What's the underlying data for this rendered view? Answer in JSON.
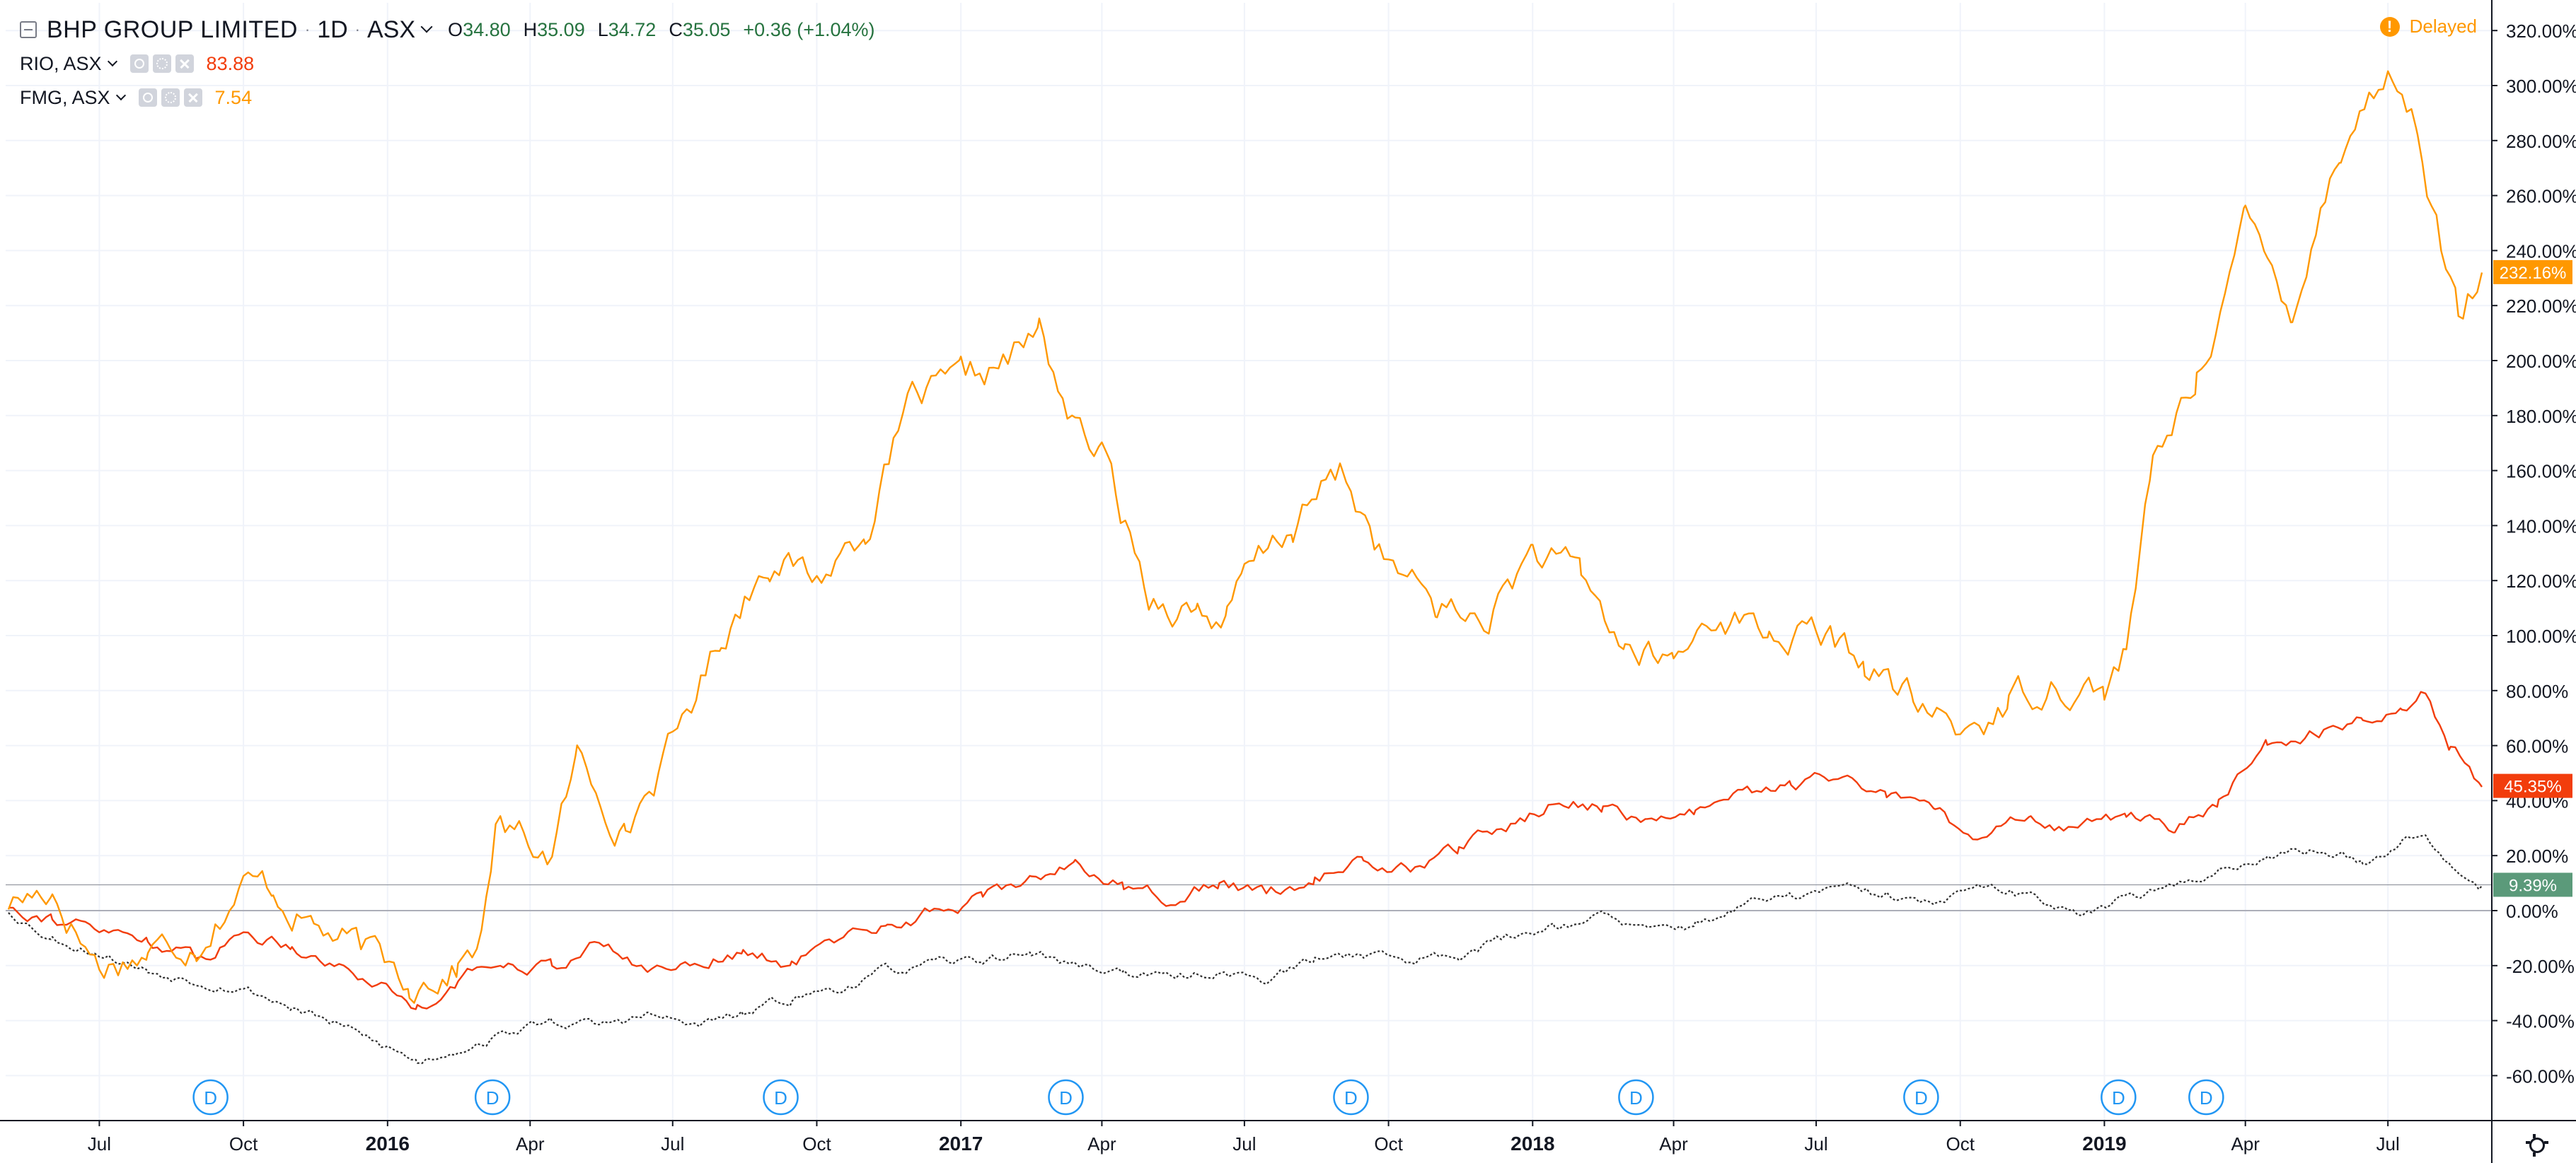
{
  "legend": {
    "main": {
      "title": "BHP GROUP LIMITED",
      "interval": "1D",
      "exchange": "ASX",
      "open_label": "O",
      "open": "34.80",
      "high_label": "H",
      "high": "35.09",
      "low_label": "L",
      "low": "34.72",
      "close_label": "C",
      "close": "35.05",
      "change": "+0.36 (+1.04%)"
    },
    "compare": [
      {
        "symbol": "RIO, ASX",
        "value": "83.88",
        "color": "#f23d0c"
      },
      {
        "symbol": "FMG, ASX",
        "value": "7.54",
        "color": "#ff9800"
      }
    ]
  },
  "status": {
    "delayed_label": "Delayed"
  },
  "icons": {
    "collapse": "collapse-icon",
    "visibility": "eye-icon",
    "settings": "gear-icon",
    "remove": "close-icon",
    "warning": "warning-icon",
    "chart_settings": "settings-icon",
    "dividend": "dividend-marker-icon"
  },
  "chart_data": {
    "type": "line",
    "title": "",
    "xlabel": "",
    "ylabel": "",
    "y_unit": "%",
    "ylim": [
      -70,
      330
    ],
    "x_range": [
      "2015-05-04",
      "2019-08-30"
    ],
    "grid": true,
    "y_ticks": [
      "320.00%",
      "300.00%",
      "280.00%",
      "260.00%",
      "240.00%",
      "220.00%",
      "200.00%",
      "180.00%",
      "160.00%",
      "140.00%",
      "120.00%",
      "100.00%",
      "80.00%",
      "60.00%",
      "40.00%",
      "20.00%",
      "0.00%",
      "-20.00%",
      "-40.00%",
      "-60.00%"
    ],
    "y_tick_values": [
      320,
      300,
      280,
      260,
      240,
      220,
      200,
      180,
      160,
      140,
      120,
      100,
      80,
      60,
      40,
      20,
      0,
      -20,
      -40,
      -60
    ],
    "x_ticks": [
      "Jul",
      "Oct",
      "2016",
      "Apr",
      "Jul",
      "Oct",
      "2017",
      "Apr",
      "Jul",
      "Oct",
      "2018",
      "Apr",
      "Jul",
      "Oct",
      "2019",
      "Apr",
      "Jul"
    ],
    "x_tick_dates": [
      "2015-07-01",
      "2015-10-01",
      "2016-01-01",
      "2016-04-01",
      "2016-07-01",
      "2016-10-01",
      "2017-01-01",
      "2017-04-01",
      "2017-07-01",
      "2017-10-01",
      "2018-01-01",
      "2018-04-01",
      "2018-07-01",
      "2018-10-01",
      "2019-01-01",
      "2019-04-01",
      "2019-07-01"
    ],
    "dividend_markers": {
      "label": "D",
      "dates": [
        "2015-09-10",
        "2016-03-08",
        "2016-09-08",
        "2017-03-09",
        "2017-09-07",
        "2018-03-08",
        "2018-09-06",
        "2019-01-10",
        "2019-03-07"
      ]
    },
    "series": [
      {
        "name": "FMG, ASX",
        "color": "#ff9800",
        "last_label": "232.16%",
        "x": [
          "2015-05-04",
          "2015-06-01",
          "2015-07-01",
          "2015-08-01",
          "2015-09-01",
          "2015-10-01",
          "2015-10-20",
          "2015-11-15",
          "2015-12-15",
          "2016-01-15",
          "2016-02-15",
          "2016-03-01",
          "2016-03-10",
          "2016-04-15",
          "2016-05-01",
          "2016-06-01",
          "2016-07-01",
          "2016-08-01",
          "2016-09-01",
          "2016-10-01",
          "2016-11-01",
          "2016-12-01",
          "2017-01-01",
          "2017-02-01",
          "2017-02-20",
          "2017-03-15",
          "2017-04-01",
          "2017-05-01",
          "2017-06-01",
          "2017-06-20",
          "2017-07-01",
          "2017-08-01",
          "2017-09-01",
          "2017-10-01",
          "2017-11-01",
          "2017-12-01",
          "2018-01-01",
          "2018-02-01",
          "2018-03-01",
          "2018-04-01",
          "2018-05-01",
          "2018-06-01",
          "2018-07-01",
          "2018-08-01",
          "2018-09-01",
          "2018-10-01",
          "2018-11-01",
          "2018-12-01",
          "2019-01-01",
          "2019-01-15",
          "2019-02-01",
          "2019-03-01",
          "2019-04-01",
          "2019-04-15",
          "2019-05-01",
          "2019-06-01",
          "2019-07-01",
          "2019-07-20",
          "2019-08-01",
          "2019-08-15",
          "2019-08-30"
        ],
        "values": [
          3,
          8,
          -20,
          -15,
          -10,
          10,
          8,
          -5,
          -15,
          -25,
          -20,
          -10,
          30,
          20,
          55,
          30,
          60,
          100,
          130,
          120,
          140,
          185,
          190,
          200,
          210,
          175,
          165,
          115,
          110,
          105,
          120,
          140,
          160,
          125,
          110,
          105,
          130,
          120,
          95,
          90,
          110,
          100,
          100,
          90,
          75,
          65,
          75,
          85,
          80,
          95,
          160,
          195,
          250,
          235,
          220,
          280,
          305,
          285,
          250,
          215,
          232
        ]
      },
      {
        "name": "RIO, ASX",
        "color": "#f23d0c",
        "last_label": "45.35%",
        "x": [
          "2015-05-04",
          "2015-06-01",
          "2015-07-01",
          "2015-08-01",
          "2015-09-01",
          "2015-10-01",
          "2015-11-01",
          "2015-12-01",
          "2016-01-01",
          "2016-01-20",
          "2016-02-15",
          "2016-03-15",
          "2016-04-15",
          "2016-05-15",
          "2016-06-15",
          "2016-07-15",
          "2016-08-15",
          "2016-09-15",
          "2016-10-15",
          "2016-11-15",
          "2016-12-15",
          "2017-01-15",
          "2017-02-15",
          "2017-03-15",
          "2017-04-15",
          "2017-05-15",
          "2017-06-15",
          "2017-07-15",
          "2017-08-15",
          "2017-09-15",
          "2017-10-15",
          "2017-11-15",
          "2017-12-15",
          "2018-01-15",
          "2018-02-15",
          "2018-03-15",
          "2018-04-15",
          "2018-05-15",
          "2018-06-15",
          "2018-07-15",
          "2018-08-15",
          "2018-09-15",
          "2018-10-15",
          "2018-11-15",
          "2018-12-15",
          "2019-01-15",
          "2019-02-15",
          "2019-03-15",
          "2019-04-15",
          "2019-05-15",
          "2019-06-15",
          "2019-07-10",
          "2019-07-25",
          "2019-08-10",
          "2019-08-30"
        ],
        "values": [
          2,
          -2,
          -8,
          -10,
          -18,
          -8,
          -12,
          -20,
          -28,
          -35,
          -25,
          -18,
          -20,
          -12,
          -22,
          -18,
          -15,
          -20,
          -10,
          -5,
          0,
          5,
          12,
          18,
          8,
          5,
          10,
          6,
          12,
          18,
          15,
          22,
          30,
          40,
          38,
          32,
          35,
          42,
          45,
          48,
          42,
          35,
          25,
          35,
          30,
          35,
          30,
          40,
          60,
          65,
          70,
          75,
          80,
          60,
          45
        ]
      },
      {
        "name": "BHP GROUP LIMITED",
        "color": "#2e2e2e",
        "last_label": "9.39%",
        "x": [
          "2015-05-04",
          "2015-06-01",
          "2015-07-01",
          "2015-08-01",
          "2015-09-01",
          "2015-10-01",
          "2015-11-01",
          "2015-12-01",
          "2016-01-01",
          "2016-01-20",
          "2016-02-15",
          "2016-03-15",
          "2016-04-15",
          "2016-05-15",
          "2016-06-15",
          "2016-07-15",
          "2016-08-15",
          "2016-09-15",
          "2016-10-15",
          "2016-11-15",
          "2016-12-15",
          "2017-01-15",
          "2017-02-15",
          "2017-03-15",
          "2017-04-15",
          "2017-05-15",
          "2017-06-15",
          "2017-07-15",
          "2017-08-15",
          "2017-09-15",
          "2017-10-15",
          "2017-11-15",
          "2017-12-15",
          "2018-01-15",
          "2018-02-15",
          "2018-03-15",
          "2018-04-15",
          "2018-05-15",
          "2018-06-15",
          "2018-07-15",
          "2018-08-15",
          "2018-09-15",
          "2018-10-15",
          "2018-11-15",
          "2018-12-15",
          "2019-01-15",
          "2019-02-15",
          "2019-03-15",
          "2019-04-15",
          "2019-05-15",
          "2019-06-15",
          "2019-07-10",
          "2019-07-25",
          "2019-08-10",
          "2019-08-30"
        ],
        "values": [
          0,
          -10,
          -15,
          -22,
          -25,
          -28,
          -35,
          -42,
          -50,
          -55,
          -50,
          -45,
          -40,
          -42,
          -38,
          -42,
          -38,
          -32,
          -28,
          -22,
          -20,
          -18,
          -15,
          -20,
          -22,
          -25,
          -22,
          -25,
          -18,
          -15,
          -18,
          -15,
          -10,
          -5,
          -2,
          -8,
          -5,
          2,
          5,
          8,
          5,
          2,
          8,
          5,
          0,
          5,
          8,
          15,
          20,
          22,
          18,
          25,
          30,
          18,
          9
        ]
      }
    ]
  }
}
